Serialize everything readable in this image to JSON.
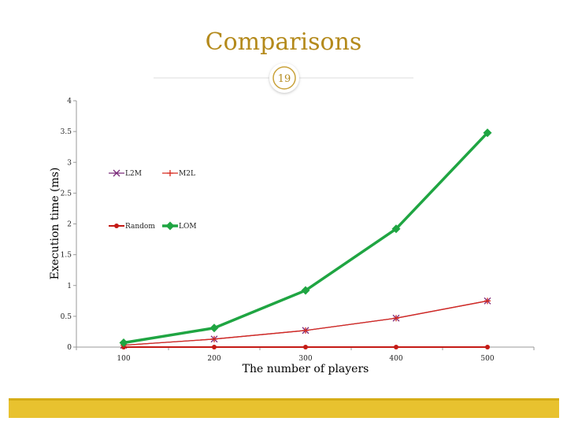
{
  "slide": {
    "title": "Comparisons",
    "page_number": "19"
  },
  "colors": {
    "title": "#b48a1c",
    "L2M": "#7a2a7a",
    "M2L": "#d62a1f",
    "Random": "#c41a15",
    "LOM": "#1fa542",
    "footer": "#e8c22f"
  },
  "chart_data": {
    "type": "line",
    "title": "",
    "xlabel": "The number of players",
    "ylabel": "Execution time (ms)",
    "x": [
      100,
      200,
      300,
      400,
      500
    ],
    "xticks": [
      "100",
      "200",
      "300",
      "400",
      "500"
    ],
    "yticks": [
      "0",
      "0.5",
      "1",
      "1.5",
      "2",
      "2.5",
      "3",
      "3.5",
      "4"
    ],
    "ylim": [
      0,
      4
    ],
    "grid": false,
    "series": [
      {
        "name": "L2M",
        "values": [
          0.03,
          0.13,
          0.27,
          0.47,
          0.75
        ],
        "marker": "x"
      },
      {
        "name": "M2L",
        "values": [
          0.03,
          0.13,
          0.27,
          0.47,
          0.75
        ],
        "marker": "plus"
      },
      {
        "name": "Random",
        "values": [
          0.0,
          0.0,
          0.0,
          0.0,
          0.0
        ],
        "marker": "circle"
      },
      {
        "name": "LOM",
        "values": [
          0.07,
          0.31,
          0.92,
          1.92,
          3.48
        ],
        "marker": "diamond"
      }
    ],
    "legend": {
      "placement": "inside-upper-left",
      "columns": 2
    }
  }
}
